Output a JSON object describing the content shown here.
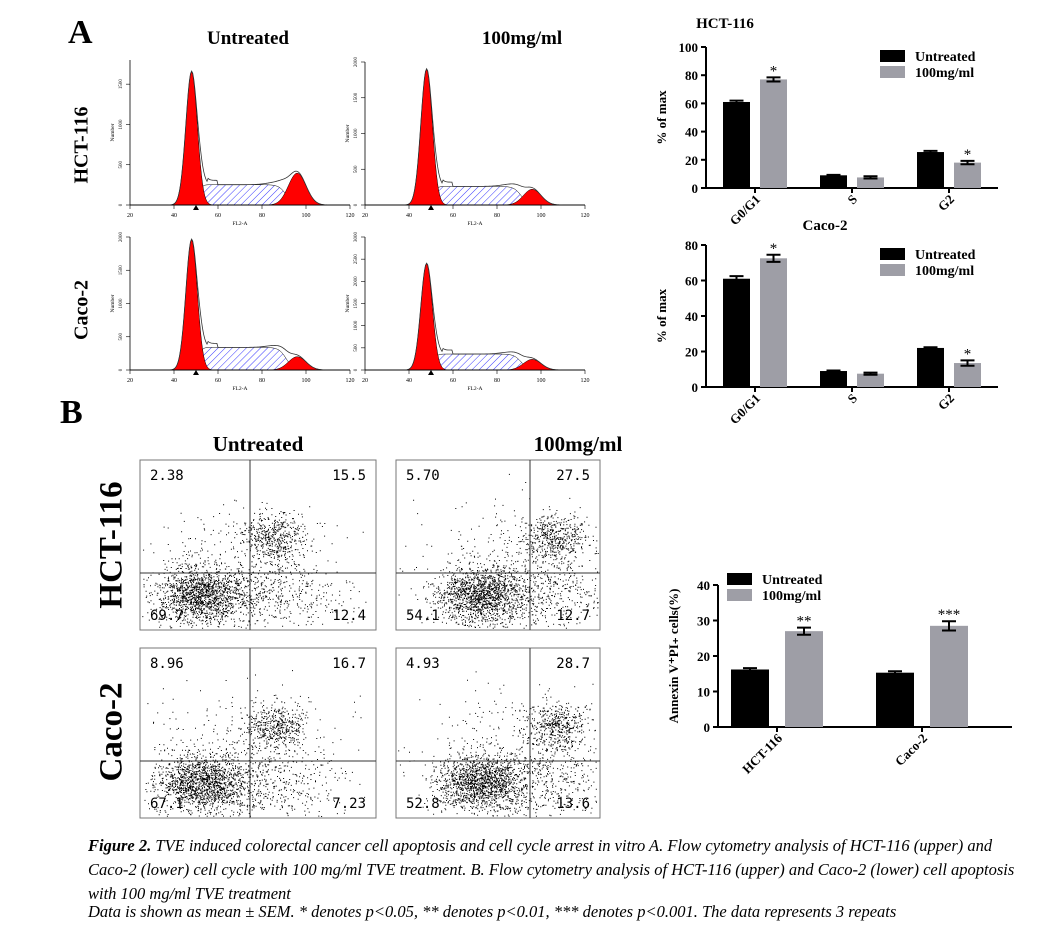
{
  "panel_a": {
    "letter": "A",
    "columns": [
      "Untreated",
      "100mg/ml"
    ],
    "rows": [
      "HCT-116",
      "Caco-2"
    ],
    "histograms": [
      {
        "yticks": [
          0,
          500,
          1000,
          1500
        ]
      },
      {
        "yticks": [
          0,
          500,
          1000,
          1500,
          2000
        ]
      },
      {
        "yticks": [
          0,
          500,
          1000,
          1500,
          2000
        ]
      },
      {
        "yticks": [
          0,
          500,
          1000,
          1500,
          2000,
          2500,
          3000
        ]
      }
    ],
    "xticks": [
      20,
      40,
      60,
      80,
      100,
      120
    ],
    "xlabel": "FL2-A",
    "ylabel": "Number",
    "colors": {
      "g1_g2": "#ff0000",
      "s_phase_hatch": "#3a3aff"
    }
  },
  "panel_b": {
    "letter": "B",
    "columns": [
      "Untreated",
      "100mg/ml"
    ],
    "rows": [
      "HCT-116",
      "Caco-2"
    ],
    "dotplots": [
      {
        "ul": "2.38",
        "ur": "15.5",
        "ll": "69.7",
        "lr": "12.4"
      },
      {
        "ul": "5.70",
        "ur": "27.5",
        "ll": "54.1",
        "lr": "12.7"
      },
      {
        "ul": "8.96",
        "ur": "16.7",
        "ll": "67.1",
        "lr": "7.23"
      },
      {
        "ul": "4.93",
        "ur": "28.7",
        "ll": "52.8",
        "lr": "13.6"
      }
    ]
  },
  "chart_data": [
    {
      "type": "bar",
      "title": "HCT-116",
      "ylabel": "% of max",
      "ylim": [
        0,
        100
      ],
      "yticks": [
        0,
        20,
        40,
        60,
        80,
        100
      ],
      "categories": [
        "G0/G1",
        "S",
        "G2"
      ],
      "series": [
        {
          "name": "Untreated",
          "values": [
            61,
            9,
            25.5
          ],
          "errors": [
            1,
            0.3,
            0.8
          ],
          "color": "#000000"
        },
        {
          "name": "100mg/ml",
          "values": [
            77,
            7.5,
            18
          ],
          "errors": [
            1.5,
            0.8,
            1.2
          ],
          "color": "#9e9ea6"
        }
      ],
      "annotations": [
        "*",
        "",
        "*"
      ],
      "legend": "top-right"
    },
    {
      "type": "bar",
      "title": "Caco-2",
      "ylabel": "% of max",
      "ylim": [
        0,
        80
      ],
      "yticks": [
        0,
        20,
        40,
        60,
        80
      ],
      "categories": [
        "G0/G1",
        "S",
        "G2"
      ],
      "series": [
        {
          "name": "Untreated",
          "values": [
            61,
            9,
            22
          ],
          "errors": [
            1.5,
            0.3,
            0.4
          ],
          "color": "#000000"
        },
        {
          "name": "100mg/ml",
          "values": [
            72.5,
            7.5,
            13.5
          ],
          "errors": [
            2,
            0.6,
            1.5
          ],
          "color": "#9e9ea6"
        }
      ],
      "annotations": [
        "*",
        "",
        "*"
      ],
      "legend": "top-right"
    },
    {
      "type": "bar",
      "title": "",
      "ylabel": "Annexin V⁺PI₊ cells(%)",
      "ylim": [
        0,
        40
      ],
      "yticks": [
        0,
        10,
        20,
        30,
        40
      ],
      "categories": [
        "HCT-116",
        "Caco-2"
      ],
      "series": [
        {
          "name": "Untreated",
          "values": [
            16.2,
            15.3
          ],
          "errors": [
            0.4,
            0.4
          ],
          "color": "#000000"
        },
        {
          "name": "100mg/ml",
          "values": [
            27,
            28.5
          ],
          "errors": [
            1,
            1.3
          ],
          "color": "#9e9ea6"
        }
      ],
      "annotations": [
        "**",
        "***"
      ],
      "legend": "top-left"
    }
  ],
  "caption": {
    "label": "Figure 2.",
    "text": " TVE induced colorectal cancer cell apoptosis and cell cycle arrest in vitro A. Flow cytometry analysis of HCT-116 (upper) and Caco-2 (lower) cell cycle with 100 mg/ml TVE treatment. B. Flow cytometry analysis of HCT-116 (upper) and Caco-2 (lower) cell apoptosis with 100 mg/ml TVE treatment",
    "note": "Data is shown as mean ± SEM. * denotes p<0.05, ** denotes p<0.01, *** denotes p<0.001. The data represents 3 repeats"
  }
}
